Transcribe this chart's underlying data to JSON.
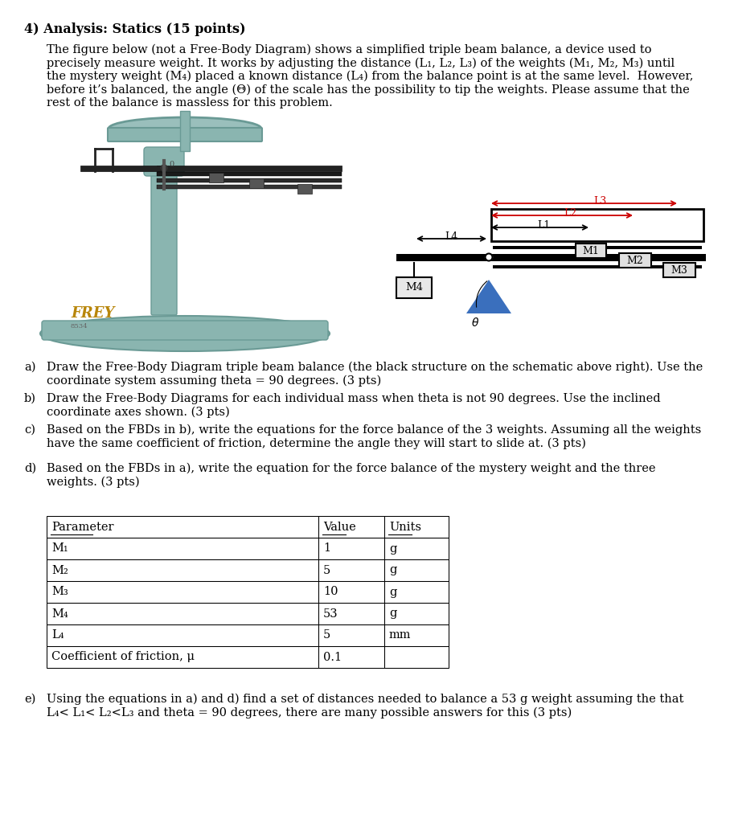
{
  "title": "4) Analysis: Statics (15 points)",
  "para_line1": "The figure below (not a Free-Body Diagram) shows a simplified triple beam balance, a device used to",
  "para_line2": "precisely measure weight. It works by adjusting the distance (L₁, L₂, L₃) of the weights (M₁, M₂, M₃) until",
  "para_line3": "the mystery weight (M₄) placed a known distance (L₄) from the balance point is at the same level.  However,",
  "para_line4": "before it’s balanced, the angle (Θ) of the scale has the possibility to tip the weights. Please assume that the",
  "para_line5": "rest of the balance is massless for this problem.",
  "part_a_label": "a)",
  "part_a_l1": "Draw the Free-Body Diagram triple beam balance (the black structure on the schematic above right). Use the",
  "part_a_l2": "coordinate system assuming theta = 90 degrees. (3 pts)",
  "part_b_label": "b)",
  "part_b_l1": "Draw the Free-Body Diagrams for each individual mass when theta is not 90 degrees. Use the inclined",
  "part_b_l2": "coordinate axes shown. (3 pts)",
  "part_c_label": "c)",
  "part_c_l1": "Based on the FBDs in b), write the equations for the force balance of the 3 weights. Assuming all the weights",
  "part_c_l2": "have the same coefficient of friction, determine the angle they will start to slide at. (3 pts)",
  "part_d_label": "d)",
  "part_d_l1": "Based on the FBDs in a), write the equation for the force balance of the mystery weight and the three",
  "part_d_l2": "weights. (3 pts)",
  "part_e_label": "e)",
  "part_e_l1": "Using the equations in a) and d) find a set of distances needed to balance a 53 g weight assuming the that",
  "part_e_l2": "L₄< L₁< L₂<L₃ and theta = 90 degrees, there are many possible answers for this (3 pts)",
  "table_headers": [
    "Parameter",
    "Value",
    "Units"
  ],
  "table_rows": [
    [
      "M₁",
      "1",
      "g"
    ],
    [
      "M₂",
      "5",
      "g"
    ],
    [
      "M₃",
      "10",
      "g"
    ],
    [
      "M₄",
      "53",
      "g"
    ],
    [
      "L₄",
      "5",
      "mm"
    ],
    [
      "Coefficient of friction, μ",
      "0.1",
      ""
    ]
  ],
  "teal": "#8ab5b0",
  "teal_dark": "#6a9a95",
  "teal_light": "#a8cbc7",
  "gray_beam": "#555555",
  "gray_light": "#cccccc",
  "red": "#cc0000",
  "black": "#000000",
  "white": "#ffffff",
  "blue_tri": "#3a6fbd",
  "bg": "#ffffff",
  "gold": "#b8860b",
  "text_fs": 10.5,
  "title_fs": 11.5
}
